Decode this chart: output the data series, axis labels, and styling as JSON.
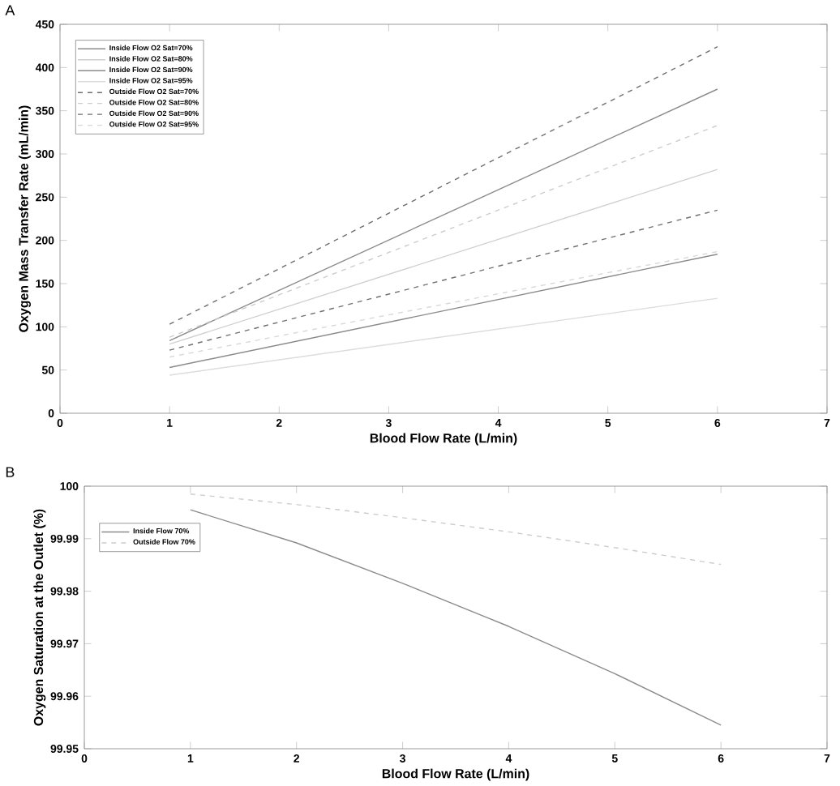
{
  "chart_data": [
    {
      "type": "line",
      "xlabel": "Blood Flow Rate (L/min)",
      "ylabel": "Oxygen Mass Transfer Rate (mL/min)",
      "annotations": [
        "A"
      ],
      "xlim": [
        0,
        7
      ],
      "ylim": [
        0,
        450
      ],
      "xticks": [
        0,
        1,
        2,
        3,
        4,
        5,
        6,
        7
      ],
      "yticks": [
        0,
        50,
        100,
        150,
        200,
        250,
        300,
        350,
        400,
        450
      ],
      "legend": "top left",
      "grid": false,
      "series": [
        {
          "name": "Inside Flow O2 Sat=70%",
          "color": "#8c8c8c",
          "line_style": "solid",
          "x": [
            1,
            6
          ],
          "values": [
            84,
            375
          ]
        },
        {
          "name": "Inside Flow O2 Sat=80%",
          "color": "#cfcfcf",
          "line_style": "solid",
          "x": [
            1,
            6
          ],
          "values": [
            80,
            282
          ]
        },
        {
          "name": "Inside Flow O2 Sat=90%",
          "color": "#8a8a8a",
          "line_style": "solid",
          "x": [
            1,
            6
          ],
          "values": [
            53,
            184
          ]
        },
        {
          "name": "Inside Flow O2 Sat=95%",
          "color": "#dcdcdc",
          "line_style": "solid",
          "x": [
            1,
            6
          ],
          "values": [
            44,
            133
          ]
        },
        {
          "name": "Outside Flow O2 Sat=70%",
          "color": "#6e6e6e",
          "line_style": "dashed",
          "x": [
            1,
            6
          ],
          "values": [
            103,
            424
          ]
        },
        {
          "name": "Outside Flow O2 Sat=80%",
          "color": "#cccccc",
          "line_style": "dashed",
          "x": [
            1,
            6
          ],
          "values": [
            88,
            333
          ]
        },
        {
          "name": "Outside Flow O2 Sat=90%",
          "color": "#707070",
          "line_style": "dashed",
          "x": [
            1,
            6
          ],
          "values": [
            73,
            235
          ]
        },
        {
          "name": "Outside Flow O2 Sat=95%",
          "color": "#d8d8d8",
          "line_style": "dashed",
          "x": [
            1,
            6
          ],
          "values": [
            65,
            187
          ]
        }
      ]
    },
    {
      "type": "line",
      "xlabel": "Blood Flow Rate (L/min)",
      "ylabel": "Oxygen Saturation at the Outlet (%)",
      "annotations": [
        "B"
      ],
      "xlim": [
        0,
        7
      ],
      "ylim": [
        99.95,
        100
      ],
      "xticks": [
        0,
        1,
        2,
        3,
        4,
        5,
        6,
        7
      ],
      "yticks": [
        99.95,
        99.96,
        99.97,
        99.98,
        99.99,
        100
      ],
      "legend": "top left",
      "grid": false,
      "series": [
        {
          "name": "Inside Flow 70%",
          "color": "#8c8c8c",
          "line_style": "solid",
          "x": [
            1,
            2,
            3,
            4,
            5,
            6
          ],
          "values": [
            99.9955,
            99.9892,
            99.9815,
            99.9733,
            99.9643,
            99.9545
          ]
        },
        {
          "name": "Outside Flow 70%",
          "color": "#cccccc",
          "line_style": "dashed",
          "x": [
            1,
            2,
            3,
            4,
            5,
            6
          ],
          "values": [
            99.9985,
            99.9965,
            99.994,
            99.9913,
            99.9883,
            99.9851
          ]
        }
      ]
    }
  ]
}
